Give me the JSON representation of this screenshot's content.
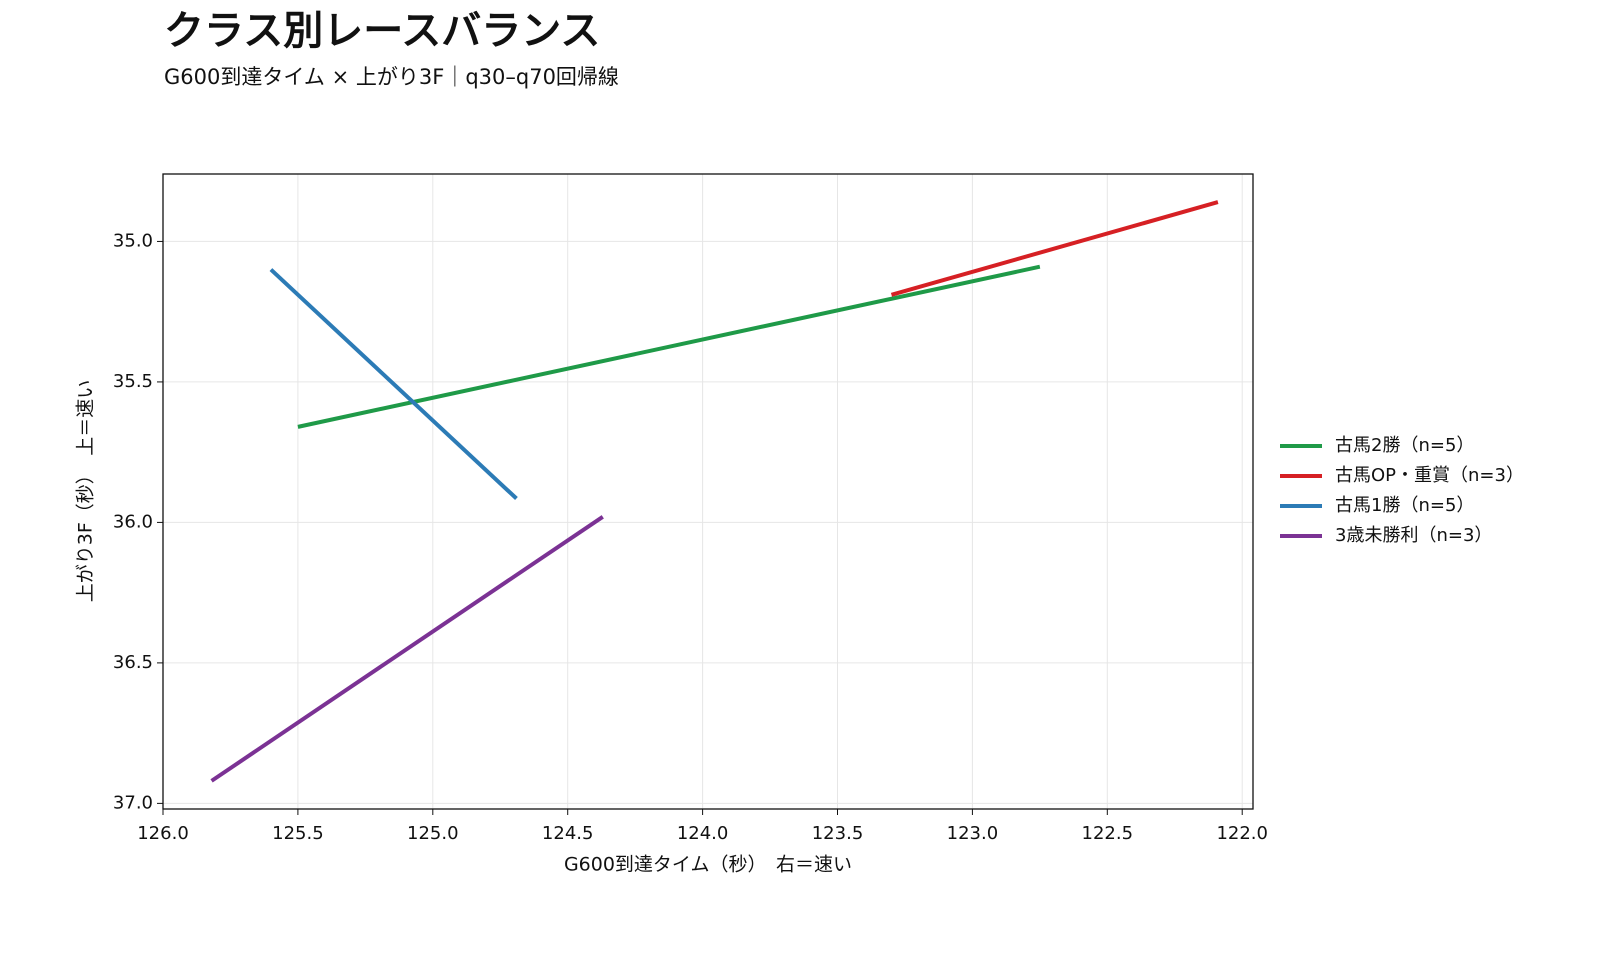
{
  "chart_data": {
    "type": "line",
    "title": "クラス別レースバランス",
    "subtitle": "G600到達タイム × 上がり3F｜q30–q70回帰線",
    "x_label": "G600到達タイム（秒）　右＝速い",
    "y_label": "上がり3F（秒）　上＝速い",
    "xlim": [
      126.0,
      121.96
    ],
    "ylim": [
      37.02,
      34.76
    ],
    "xticks": [
      {
        "value": 126,
        "label": "126.0"
      },
      125.5,
      {
        "value": 125,
        "label": "125.0"
      },
      124.5,
      {
        "value": 124,
        "label": "124.0"
      },
      123.5,
      {
        "value": 123,
        "label": "123.0"
      },
      122.5,
      {
        "value": 122,
        "label": "122.0"
      }
    ],
    "yticks": [
      {
        "value": 35,
        "label": "35.0"
      },
      35.5,
      {
        "value": 36,
        "label": "36.0"
      },
      36.5,
      {
        "value": 37,
        "label": "37.0"
      }
    ],
    "grid": true,
    "legend": "right",
    "series": [
      {
        "name": "古馬2勝（n=5）",
        "color": "#1f9a48",
        "x": [
          125.5,
          122.75
        ],
        "values": [
          35.66,
          35.09
        ]
      },
      {
        "name": "古馬OP・重賞（n=3）",
        "color": "#d62024",
        "x": [
          123.3,
          122.09
        ],
        "values": [
          35.19,
          34.86
        ]
      },
      {
        "name": "古馬1勝（n=5）",
        "color": "#2c7bb6",
        "x": [
          125.6,
          124.69
        ],
        "values": [
          35.1,
          35.915
        ]
      },
      {
        "name": "3歳未勝利（n=3）",
        "color": "#7b3294",
        "x": [
          125.82,
          124.37
        ],
        "values": [
          36.92,
          35.98
        ]
      }
    ]
  }
}
